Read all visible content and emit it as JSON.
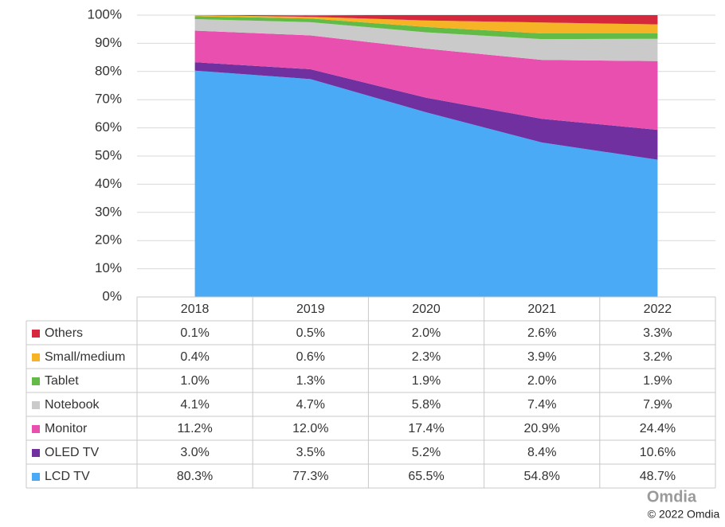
{
  "chart_data": {
    "type": "area",
    "stacked": true,
    "categories": [
      "2018",
      "2019",
      "2020",
      "2021",
      "2022"
    ],
    "ylim": [
      0,
      100
    ],
    "yticks": [
      {
        "value": 0,
        "label": "0%"
      },
      {
        "value": 10,
        "label": "10%"
      },
      {
        "value": 20,
        "label": "20%"
      },
      {
        "value": 30,
        "label": "30%"
      },
      {
        "value": 40,
        "label": "40%"
      },
      {
        "value": 50,
        "label": "50%"
      },
      {
        "value": 60,
        "label": "60%"
      },
      {
        "value": 70,
        "label": "70%"
      },
      {
        "value": 80,
        "label": "80%"
      },
      {
        "value": 90,
        "label": "90%"
      },
      {
        "value": 100,
        "label": "100%"
      }
    ],
    "grid": true,
    "series": [
      {
        "name": "LCD TV",
        "color": "#4aaaf5",
        "values": [
          80.3,
          77.3,
          65.5,
          54.8,
          48.7
        ],
        "value_labels": [
          "80.3%",
          "77.3%",
          "65.5%",
          "54.8%",
          "48.7%"
        ]
      },
      {
        "name": "OLED TV",
        "color": "#7030a0",
        "values": [
          3.0,
          3.5,
          5.2,
          8.4,
          10.6
        ],
        "value_labels": [
          "3.0%",
          "3.5%",
          "5.2%",
          "8.4%",
          "10.6%"
        ]
      },
      {
        "name": "Monitor",
        "color": "#e84fae",
        "values": [
          11.2,
          12.0,
          17.4,
          20.9,
          24.4
        ],
        "value_labels": [
          "11.2%",
          "12.0%",
          "17.4%",
          "20.9%",
          "24.4%"
        ]
      },
      {
        "name": "Notebook",
        "color": "#cacaca",
        "values": [
          4.1,
          4.7,
          5.8,
          7.4,
          7.9
        ],
        "value_labels": [
          "4.1%",
          "4.7%",
          "5.8%",
          "7.4%",
          "7.9%"
        ]
      },
      {
        "name": "Tablet",
        "color": "#62bb46",
        "values": [
          1.0,
          1.3,
          1.9,
          2.0,
          1.9
        ],
        "value_labels": [
          "1.0%",
          "1.3%",
          "1.9%",
          "2.0%",
          "1.9%"
        ]
      },
      {
        "name": "Small/medium",
        "color": "#f6b326",
        "values": [
          0.4,
          0.6,
          2.3,
          3.9,
          3.2
        ],
        "value_labels": [
          "0.4%",
          "0.6%",
          "2.3%",
          "3.9%",
          "3.2%"
        ]
      },
      {
        "name": "Others",
        "color": "#d6283c",
        "values": [
          0.1,
          0.5,
          2.0,
          2.6,
          3.3
        ],
        "value_labels": [
          "0.1%",
          "0.5%",
          "2.0%",
          "2.6%",
          "3.3%"
        ]
      }
    ],
    "watermark": "Omdia",
    "source": "© 2022 Omdia"
  }
}
